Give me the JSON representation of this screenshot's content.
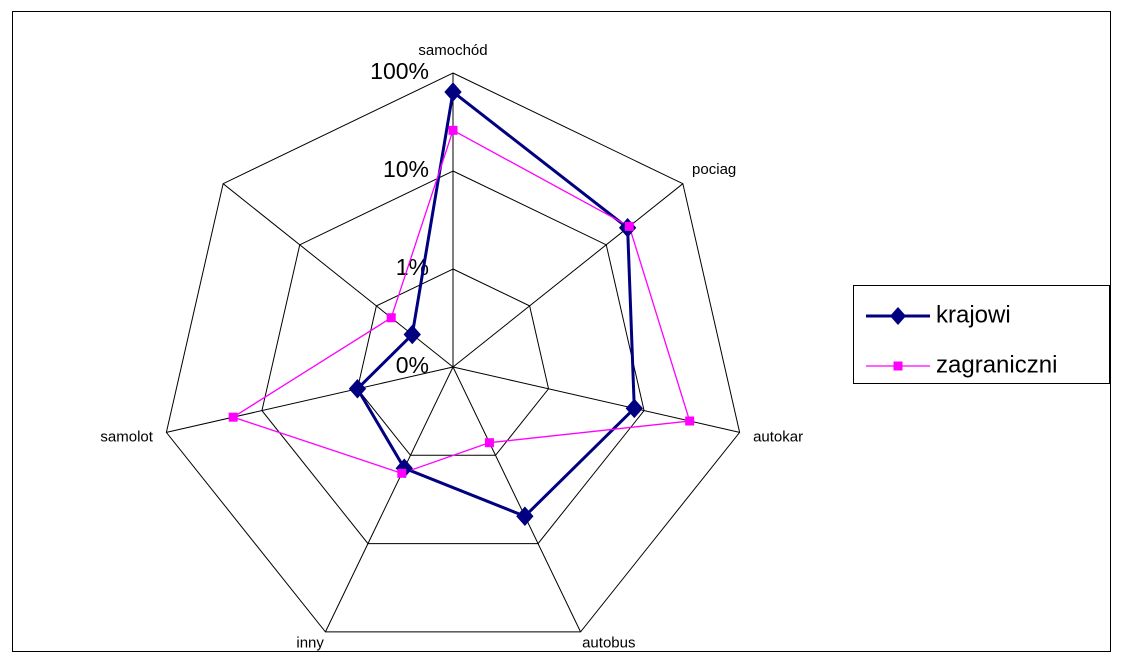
{
  "chart_data": {
    "type": "radar",
    "categories": [
      "samochód",
      "pociag",
      "autokar",
      "autobus",
      "inny",
      "samolot",
      null
    ],
    "log_scale": true,
    "rlim": [
      0.1,
      100
    ],
    "rticks": [
      {
        "value": 0.1,
        "label": "0%"
      },
      {
        "value": 1,
        "label": "1%"
      },
      {
        "value": 10,
        "label": "10%"
      },
      {
        "value": 100,
        "label": "100%"
      }
    ],
    "legend": "right",
    "series": [
      {
        "name": "krajowi",
        "color": "#000080",
        "values": [
          64,
          19,
          7.9,
          4.9,
          1.4,
          1.0,
          0.34
        ]
      },
      {
        "name": "zagraniczni",
        "color": "#ff00ff",
        "values": [
          26,
          20,
          30,
          0.72,
          1.6,
          20,
          0.64
        ]
      }
    ]
  }
}
